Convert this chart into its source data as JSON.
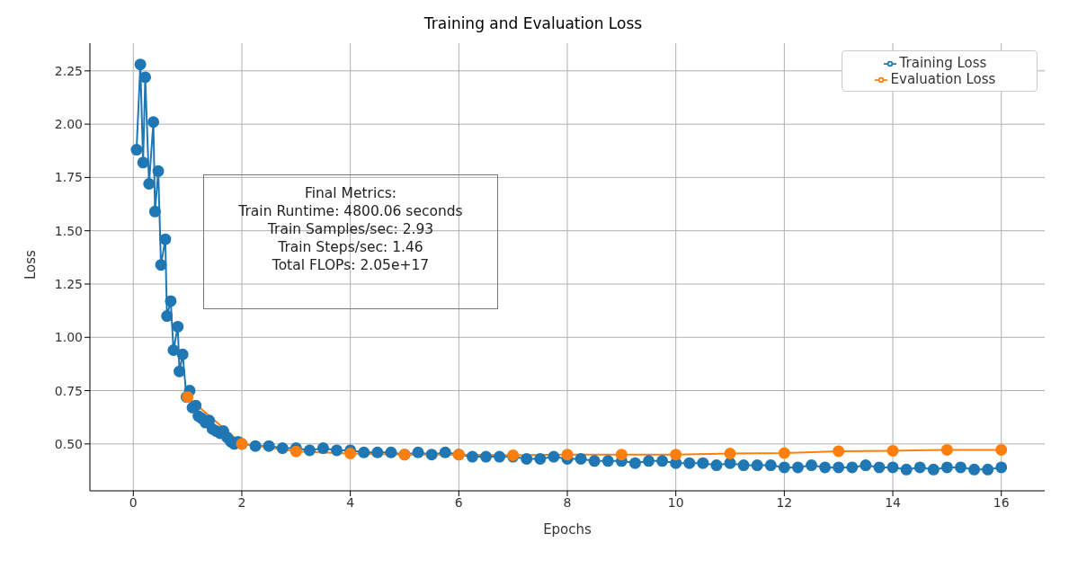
{
  "chart_data": {
    "type": "line",
    "title": "Training and Evaluation Loss",
    "xlabel": "Epochs",
    "ylabel": "Loss",
    "xlim": [
      -0.8,
      16.8
    ],
    "xticks": [
      0,
      2,
      4,
      6,
      8,
      10,
      12,
      14,
      16
    ],
    "ylim": [
      0.28,
      2.38
    ],
    "yticks": [
      {
        "value": 0.5,
        "label": "0.50"
      },
      {
        "value": 0.75,
        "label": "0.75"
      },
      {
        "value": 1.0,
        "label": "1.00"
      },
      {
        "value": 1.25,
        "label": "1.25"
      },
      {
        "value": 1.5,
        "label": "1.50"
      },
      {
        "value": 1.75,
        "label": "1.75"
      },
      {
        "value": 2.0,
        "label": "2.00"
      },
      {
        "value": 2.25,
        "label": "2.25"
      }
    ],
    "grid": true,
    "legend": "top right",
    "marker": "circle",
    "line_style": "solid",
    "annotations": [
      "Final Metrics:\nTrain Runtime: 4800.06 seconds\nTrain Samples/sec: 2.93\nTrain Steps/sec: 1.46\nTotal FLOPs: 2.05e+17"
    ],
    "series": [
      {
        "name": "Training Loss",
        "color": "#1f77b4",
        "x": [
          0.06,
          0.13,
          0.18,
          0.22,
          0.29,
          0.37,
          0.4,
          0.46,
          0.51,
          0.59,
          0.62,
          0.69,
          0.74,
          0.82,
          0.85,
          0.91,
          0.98,
          1.04,
          1.09,
          1.15,
          1.2,
          1.26,
          1.33,
          1.4,
          1.46,
          1.53,
          1.6,
          1.66,
          1.73,
          1.8,
          1.86,
          1.93,
          2.0,
          2.25,
          2.5,
          2.75,
          3,
          3.25,
          3.5,
          3.75,
          4,
          4.25,
          4.5,
          4.75,
          5,
          5.25,
          5.5,
          5.75,
          6,
          6.25,
          6.5,
          6.75,
          7,
          7.25,
          7.5,
          7.75,
          8,
          8.25,
          8.5,
          8.75,
          9,
          9.25,
          9.5,
          9.75,
          10,
          10.25,
          10.5,
          10.75,
          11,
          11.25,
          11.5,
          11.75,
          12,
          12.25,
          12.5,
          12.75,
          13,
          13.25,
          13.5,
          13.75,
          14,
          14.25,
          14.5,
          14.75,
          15,
          15.25,
          15.5,
          15.75,
          16
        ],
        "values": [
          1.88,
          2.28,
          1.82,
          2.22,
          1.72,
          2.01,
          1.59,
          1.78,
          1.34,
          1.46,
          1.1,
          1.17,
          0.94,
          1.05,
          0.84,
          0.92,
          0.72,
          0.75,
          0.67,
          0.68,
          0.63,
          0.62,
          0.6,
          0.61,
          0.57,
          0.56,
          0.55,
          0.56,
          0.53,
          0.51,
          0.5,
          0.51,
          0.5,
          0.49,
          0.49,
          0.48,
          0.48,
          0.47,
          0.48,
          0.47,
          0.47,
          0.46,
          0.46,
          0.46,
          0.45,
          0.46,
          0.45,
          0.46,
          0.45,
          0.44,
          0.44,
          0.44,
          0.44,
          0.43,
          0.43,
          0.44,
          0.43,
          0.43,
          0.42,
          0.42,
          0.42,
          0.41,
          0.42,
          0.42,
          0.41,
          0.41,
          0.41,
          0.4,
          0.41,
          0.4,
          0.4,
          0.4,
          0.39,
          0.39,
          0.4,
          0.39,
          0.39,
          0.39,
          0.4,
          0.39,
          0.39,
          0.38,
          0.39,
          0.38,
          0.39,
          0.39,
          0.38,
          0.38,
          0.39
        ]
      },
      {
        "name": "Evaluation Loss",
        "color": "#ff7f0e",
        "x": [
          1,
          2,
          3,
          4,
          5,
          6,
          7,
          8,
          9,
          10,
          11,
          12,
          13,
          14,
          15,
          16
        ],
        "values": [
          0.72,
          0.5,
          0.465,
          0.455,
          0.45,
          0.45,
          0.447,
          0.45,
          0.45,
          0.45,
          0.455,
          0.457,
          0.466,
          0.468,
          0.472,
          0.472
        ]
      }
    ]
  }
}
